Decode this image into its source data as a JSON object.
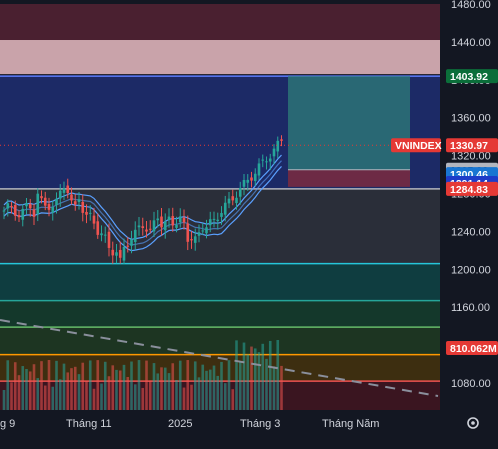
{
  "chart_data": {
    "type": "candlestick",
    "symbol_tag": "VNINDEX",
    "price_axis": {
      "ticks": [
        1080,
        1160,
        1200,
        1240,
        1280,
        1320,
        1360,
        1400,
        1440,
        1480
      ],
      "tick_labels": [
        "1080.00",
        "1160.00",
        "1200.00",
        "1240.00",
        "1280.00",
        "1320.00",
        "1360.00",
        "1400.00",
        "1440.00",
        "1480.00"
      ],
      "range": [
        1050,
        1485
      ]
    },
    "time_axis": {
      "labels": [
        "g 9",
        "Tháng 11",
        "2025",
        "Tháng 3",
        "Tháng Năm"
      ]
    },
    "price_tags": [
      {
        "label": "1403.92",
        "value": 1403.92,
        "bg": "#0b6e3a",
        "fg": "#ffffff"
      },
      {
        "label": "1330.97",
        "value": 1330.97,
        "bg": "#e53935",
        "fg": "#ffffff"
      },
      {
        "label": "1305.06",
        "value": 1305.06,
        "bg": "#b2b5be",
        "fg": "#131722"
      },
      {
        "label": "1300.46",
        "value": 1300.46,
        "bg": "#1976d2",
        "fg": "#ffffff"
      },
      {
        "label": "1291.14",
        "value": 1291.14,
        "bg": "#1e3cc8",
        "fg": "#ffffff"
      },
      {
        "label": "1284.83",
        "value": 1284.83,
        "bg": "#e53935",
        "fg": "#ffffff"
      }
    ],
    "volume_tag": {
      "label": "810.062M",
      "bg": "#e53935",
      "fg": "#ffffff"
    },
    "horizontal_levels": [
      {
        "value": 1403.92,
        "color": "#5b7cff"
      },
      {
        "value": 1284.83,
        "color": "#b2b5be"
      },
      {
        "value": 1206,
        "color": "#26c6da"
      },
      {
        "value": 1167,
        "color": "#26a69a"
      },
      {
        "value": 1139,
        "color": "#66bb6a"
      },
      {
        "value": 1110,
        "color": "#ff9800"
      },
      {
        "value": 1082,
        "color": "#ef5350"
      }
    ],
    "zones": [
      {
        "from": 1480,
        "to": 1442,
        "color": "#4a2030"
      },
      {
        "from": 1442,
        "to": 1406,
        "color": "#c9a3aa"
      },
      {
        "from": 1404,
        "to": 1284.83,
        "color": "#1c2a66"
      },
      {
        "from": 1284.83,
        "to": 1206,
        "color": "#2a2e39"
      },
      {
        "from": 1206,
        "to": 1167,
        "color": "#0f3d40"
      },
      {
        "from": 1167,
        "to": 1139,
        "color": "#14382b"
      },
      {
        "from": 1139,
        "to": 1110,
        "color": "#1d3522"
      },
      {
        "from": 1110,
        "to": 1082,
        "color": "#3d2e10"
      },
      {
        "from": 1082,
        "to": 1050,
        "color": "#3a1520"
      }
    ],
    "colors": {
      "up": "#26a69a",
      "down": "#ef5350",
      "ma": "#5aa0ff",
      "trend": "#8a8f9c"
    }
  }
}
